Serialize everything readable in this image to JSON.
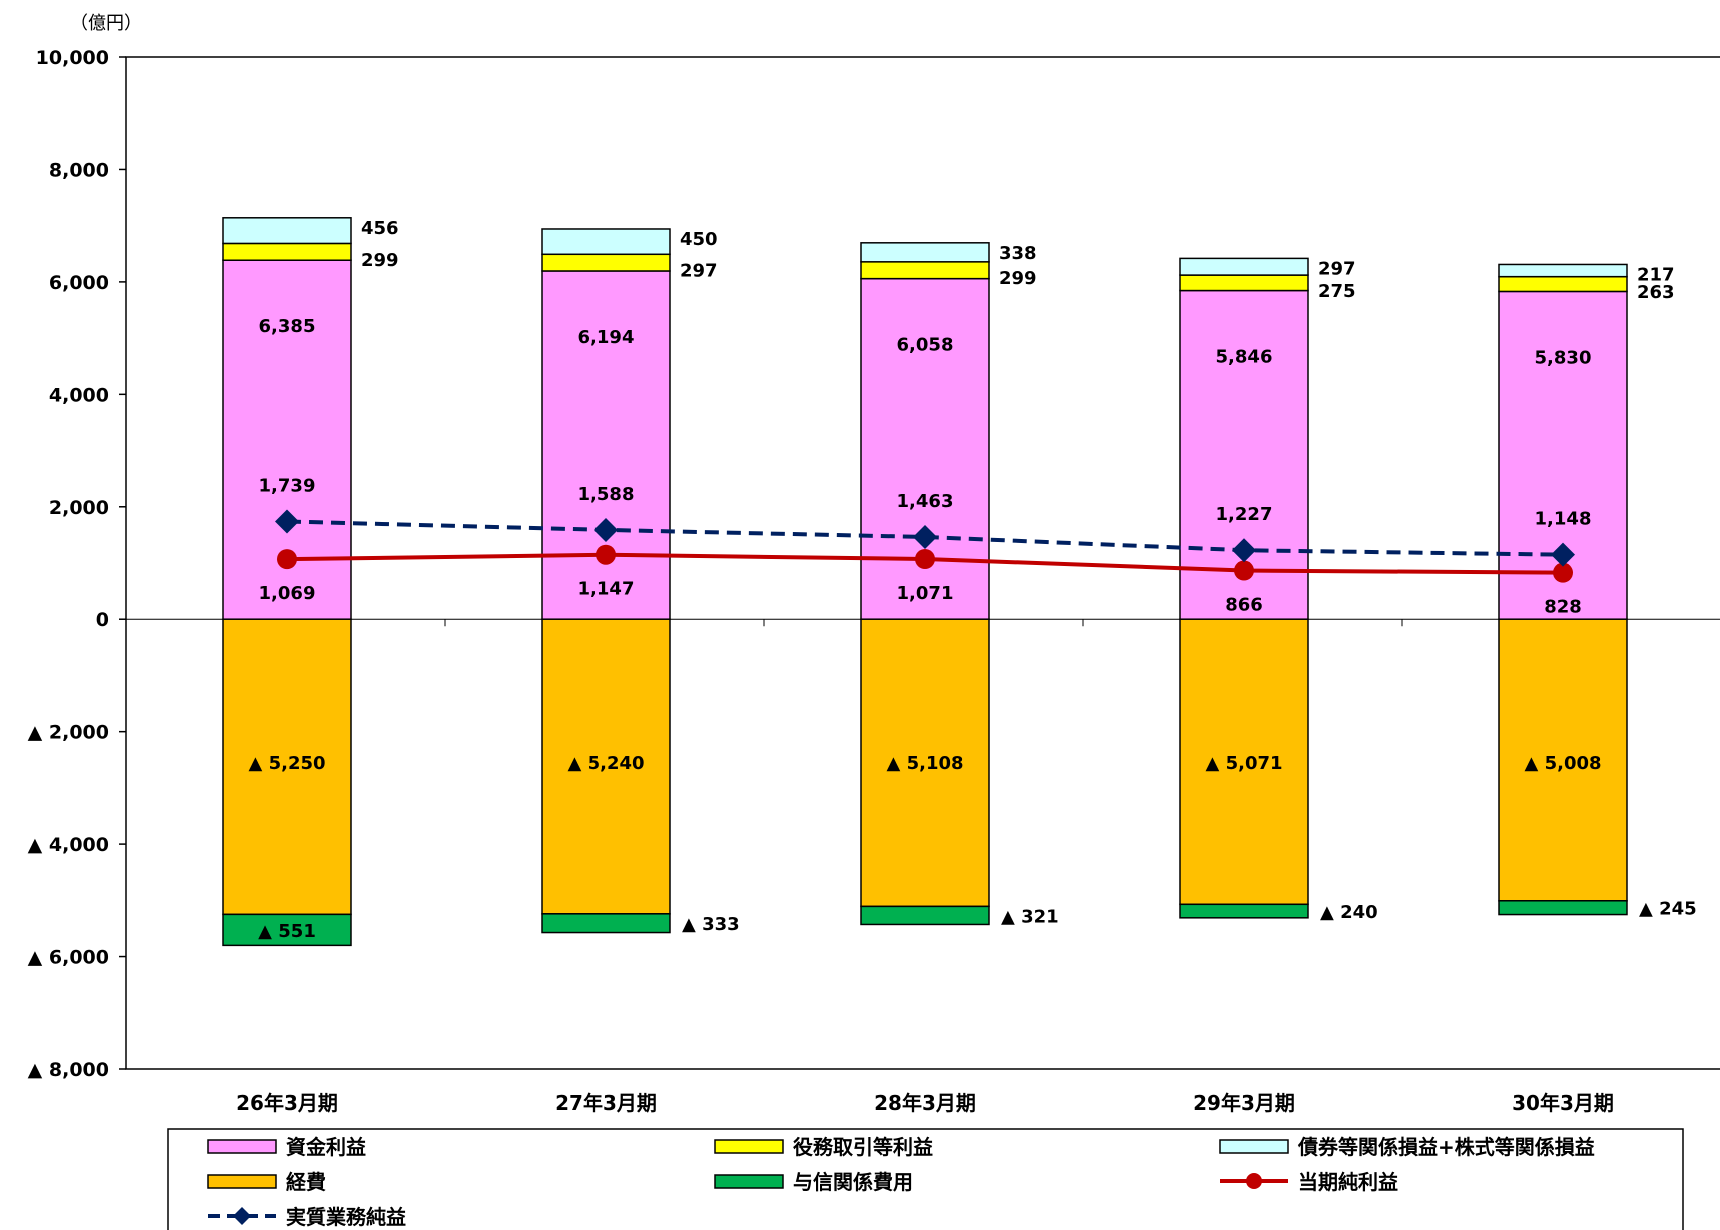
{
  "chart_data": {
    "type": "bar",
    "stacked": true,
    "unit": "（億円）",
    "categories": [
      "26年3月期",
      "27年3月期",
      "28年3月期",
      "29年3月期",
      "30年3月期"
    ],
    "ylim": [
      -8000,
      10000
    ],
    "yticks": [
      {
        "value": 10000,
        "label": "10,000"
      },
      {
        "value": 8000,
        "label": "8,000"
      },
      {
        "value": 6000,
        "label": "6,000"
      },
      {
        "value": 4000,
        "label": "4,000"
      },
      {
        "value": 2000,
        "label": "2,000"
      },
      {
        "value": 0,
        "label": "0"
      },
      {
        "value": -2000,
        "label": "▲ 2,000"
      },
      {
        "value": -4000,
        "label": "▲ 4,000"
      },
      {
        "value": -6000,
        "label": "▲ 6,000"
      },
      {
        "value": -8000,
        "label": "▲ 8,000"
      }
    ],
    "grid": false,
    "legend_position": "bottom",
    "series": [
      {
        "name": "資金利益",
        "kind": "bar",
        "color": "#FF99FF",
        "values": [
          6385,
          6194,
          6058,
          5846,
          5830
        ],
        "labels": [
          "6,385",
          "6,194",
          "6,058",
          "5,846",
          "5,830"
        ]
      },
      {
        "name": "役務取引等利益",
        "kind": "bar",
        "color": "#FFFF00",
        "values": [
          299,
          297,
          299,
          275,
          263
        ],
        "labels": [
          "299",
          "297",
          "299",
          "275",
          "263"
        ]
      },
      {
        "name": "債券等関係損益+株式等関係損益",
        "kind": "bar",
        "color": "#CCFFFF",
        "values": [
          456,
          450,
          338,
          297,
          217
        ],
        "labels": [
          "456",
          "450",
          "338",
          "297",
          "217"
        ]
      },
      {
        "name": "経費",
        "kind": "bar",
        "color": "#FFC000",
        "values": [
          -5250,
          -5240,
          -5108,
          -5071,
          -5008
        ],
        "labels": [
          "▲ 5,250",
          "▲ 5,240",
          "▲ 5,108",
          "▲ 5,071",
          "▲ 5,008"
        ]
      },
      {
        "name": "与信関係費用",
        "kind": "bar",
        "color": "#00B050",
        "values": [
          -551,
          -333,
          -321,
          -240,
          -245
        ],
        "labels": [
          "▲ 551",
          "▲ 333",
          "▲ 321",
          "▲ 240",
          "▲ 245"
        ]
      },
      {
        "name": "当期純利益",
        "kind": "line",
        "color": "#C00000",
        "values": [
          1069,
          1147,
          1071,
          866,
          828
        ],
        "labels": [
          "1,069",
          "1,147",
          "1,071",
          "866",
          "828"
        ]
      },
      {
        "name": "実質業務純益",
        "kind": "line",
        "color": "#002060",
        "dashed": true,
        "values": [
          1739,
          1588,
          1463,
          1227,
          1148
        ],
        "labels": [
          "1,739",
          "1,588",
          "1,463",
          "1,227",
          "1,148"
        ]
      }
    ]
  }
}
